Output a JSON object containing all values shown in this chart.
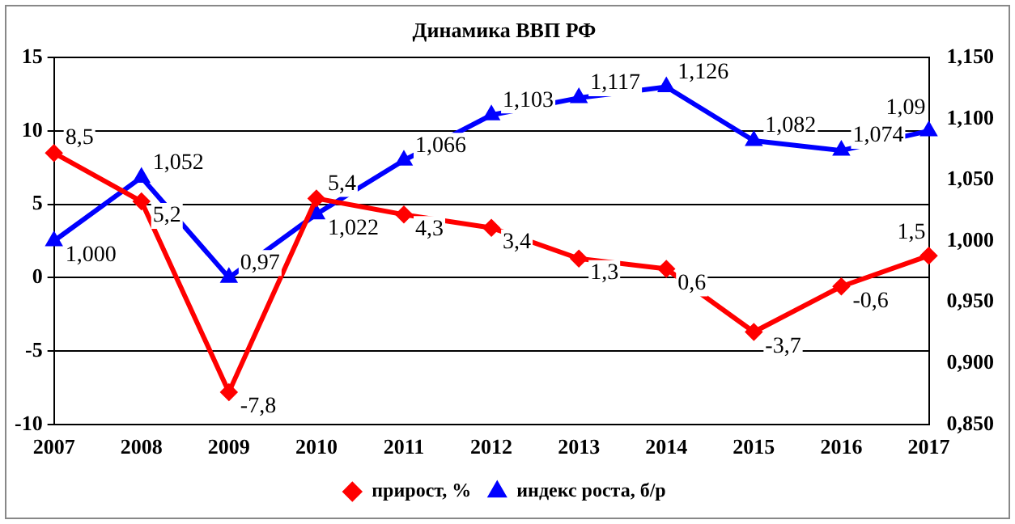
{
  "chart_data": {
    "type": "line",
    "title": "Динамика ВВП РФ",
    "categories": [
      "2007",
      "2008",
      "2009",
      "2010",
      "2011",
      "2012",
      "2013",
      "2014",
      "2015",
      "2016",
      "2017"
    ],
    "series": [
      {
        "name": "прирост, %",
        "color": "#ff0000",
        "marker": "diamond",
        "values": [
          8.5,
          5.2,
          -7.8,
          5.4,
          4.3,
          3.4,
          1.3,
          0.6,
          -3.7,
          -0.6,
          1.5
        ],
        "value_labels": [
          "8,5",
          "5,2",
          "-7,8",
          "5,4",
          "4,3",
          "3,4",
          "1,3",
          "0,6",
          "-3,7",
          "-0,6",
          "1,5"
        ]
      },
      {
        "name": "индекс роста, б/р",
        "color": "#0000ff",
        "marker": "triangle",
        "axis": "y2",
        "values": [
          1.0,
          1.052,
          0.97,
          1.022,
          1.066,
          1.103,
          1.117,
          1.126,
          1.082,
          1.074,
          1.09
        ],
        "value_labels": [
          "1,000",
          "1,052",
          "0,97",
          "1,022",
          "1,066",
          "1,103",
          "1,117",
          "1,126",
          "1,082",
          "1,074",
          "1,09"
        ]
      }
    ],
    "ylim": [
      -10,
      15
    ],
    "yticks": [
      -10,
      -5,
      0,
      5,
      10,
      15
    ],
    "y2lim": [
      0.85,
      1.15
    ],
    "y2ticks": [
      {
        "value": 0.85,
        "label": "0,850"
      },
      {
        "value": 0.9,
        "label": "0,900"
      },
      {
        "value": 0.95,
        "label": "0,950"
      },
      {
        "value": 1.0,
        "label": "1,000"
      },
      {
        "value": 1.05,
        "label": "1,050"
      },
      {
        "value": 1.1,
        "label": "1,100"
      },
      {
        "value": 1.15,
        "label": "1,150"
      }
    ],
    "grid": "y",
    "legend": "bottom",
    "line_style": "solid"
  }
}
